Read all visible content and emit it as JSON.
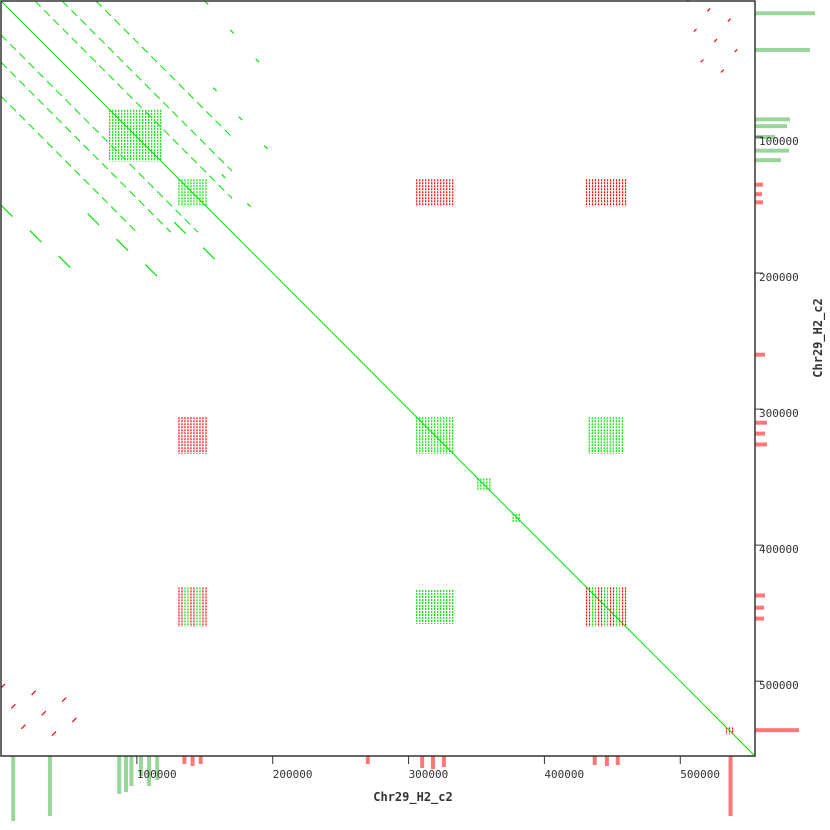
{
  "chart_data": {
    "type": "scatter",
    "title": "",
    "xlabel": "Chr29_H2_c2",
    "ylabel": "Chr29_H2_c2",
    "xlim": [
      0,
      555000
    ],
    "ylim": [
      0,
      555000
    ],
    "xticks": [
      100000,
      200000,
      300000,
      400000,
      500000
    ],
    "yticks": [
      100000,
      200000,
      300000,
      400000,
      500000
    ],
    "xtick_labels": [
      "100000",
      "200000",
      "300000",
      "400000",
      "500000"
    ],
    "ytick_labels": [
      "100000",
      "200000",
      "300000",
      "400000",
      "500000"
    ],
    "colors": {
      "forward": "#00e000",
      "reverse": "#ff0000",
      "cov_forward": "#99d699",
      "cov_reverse": "#ff7777",
      "axis": "#333333"
    },
    "diagonal": {
      "from": 0,
      "to": 555000,
      "strand": "forward"
    },
    "blocks": [
      {
        "x": [
          131000,
          151000
        ],
        "y": [
          131000,
          151000
        ],
        "strand": "forward"
      },
      {
        "x": [
          80000,
          118000
        ],
        "y": [
          80000,
          118000
        ],
        "strand": "forward"
      },
      {
        "x": [
          306000,
          333000
        ],
        "y": [
          306000,
          333000
        ],
        "strand": "forward"
      },
      {
        "x": [
          131000,
          151000
        ],
        "y": [
          306000,
          333000
        ],
        "strand": "reverse"
      },
      {
        "x": [
          306000,
          333000
        ],
        "y": [
          131000,
          151000
        ],
        "strand": "reverse"
      },
      {
        "x": [
          433000,
          458000
        ],
        "y": [
          306000,
          333000
        ],
        "strand": "forward"
      },
      {
        "x": [
          306000,
          333000
        ],
        "y": [
          433000,
          458000
        ],
        "strand": "forward"
      },
      {
        "x": [
          431000,
          460000
        ],
        "y": [
          131000,
          151000
        ],
        "strand": "reverse"
      },
      {
        "x": [
          131000,
          151000
        ],
        "y": [
          431000,
          460000
        ],
        "strand": "mixed"
      },
      {
        "x": [
          431000,
          460000
        ],
        "y": [
          431000,
          460000
        ],
        "strand": "mixed"
      },
      {
        "x": [
          534000,
          539000
        ],
        "y": [
          534000,
          539000
        ],
        "strand": "reverse"
      },
      {
        "x": [
          351000,
          360000
        ],
        "y": [
          351000,
          360000
        ],
        "strand": "forward"
      },
      {
        "x": [
          377000,
          383000
        ],
        "y": [
          377000,
          383000
        ],
        "strand": "forward"
      }
    ],
    "repeat_diagonals": [
      {
        "x": [
          0,
          170000
        ],
        "y": [
          0,
          170000
        ],
        "offsets": [
          -45000,
          -25000,
          25000,
          45000,
          -70000,
          70000
        ],
        "strand": "forward"
      },
      {
        "x": [
          0,
          60000
        ],
        "y": [
          505000,
          545000
        ],
        "strand": "reverse"
      },
      {
        "x": [
          505000,
          545000
        ],
        "y": [
          0,
          60000
        ],
        "strand": "reverse"
      },
      {
        "x": [
          0,
          170000
        ],
        "y": [
          150000,
          200000
        ],
        "strand": "forward"
      },
      {
        "x": [
          150000,
          200000
        ],
        "y": [
          0,
          170000
        ],
        "strand": "forward"
      }
    ],
    "coverage_x": [
      {
        "pos": 9000,
        "depth": 65,
        "strand": "forward"
      },
      {
        "pos": 36000,
        "depth": 60,
        "strand": "forward"
      },
      {
        "pos": 87000,
        "depth": 38,
        "strand": "forward"
      },
      {
        "pos": 92000,
        "depth": 36,
        "strand": "forward"
      },
      {
        "pos": 96000,
        "depth": 30,
        "strand": "forward"
      },
      {
        "pos": 103000,
        "depth": 20,
        "strand": "forward"
      },
      {
        "pos": 109000,
        "depth": 30,
        "strand": "forward"
      },
      {
        "pos": 115000,
        "depth": 24,
        "strand": "forward"
      },
      {
        "pos": 135000,
        "depth": 8,
        "strand": "reverse"
      },
      {
        "pos": 141000,
        "depth": 10,
        "strand": "reverse"
      },
      {
        "pos": 147000,
        "depth": 8,
        "strand": "reverse"
      },
      {
        "pos": 270000,
        "depth": 8,
        "strand": "reverse"
      },
      {
        "pos": 310000,
        "depth": 12,
        "strand": "reverse"
      },
      {
        "pos": 318000,
        "depth": 13,
        "strand": "reverse"
      },
      {
        "pos": 326000,
        "depth": 11,
        "strand": "reverse"
      },
      {
        "pos": 437000,
        "depth": 9,
        "strand": "reverse"
      },
      {
        "pos": 446000,
        "depth": 10,
        "strand": "reverse"
      },
      {
        "pos": 454000,
        "depth": 9,
        "strand": "reverse"
      },
      {
        "pos": 537000,
        "depth": 60,
        "strand": "reverse"
      }
    ],
    "coverage_y": [
      {
        "pos": 9000,
        "depth": 60,
        "strand": "forward"
      },
      {
        "pos": 36000,
        "depth": 55,
        "strand": "forward"
      },
      {
        "pos": 87000,
        "depth": 35,
        "strand": "forward"
      },
      {
        "pos": 92000,
        "depth": 32,
        "strand": "forward"
      },
      {
        "pos": 100000,
        "depth": 20,
        "strand": "forward"
      },
      {
        "pos": 110000,
        "depth": 34,
        "strand": "forward"
      },
      {
        "pos": 117000,
        "depth": 26,
        "strand": "forward"
      },
      {
        "pos": 135000,
        "depth": 8,
        "strand": "reverse"
      },
      {
        "pos": 142000,
        "depth": 7,
        "strand": "reverse"
      },
      {
        "pos": 148000,
        "depth": 8,
        "strand": "reverse"
      },
      {
        "pos": 260000,
        "depth": 10,
        "strand": "reverse"
      },
      {
        "pos": 310000,
        "depth": 12,
        "strand": "reverse"
      },
      {
        "pos": 318000,
        "depth": 10,
        "strand": "reverse"
      },
      {
        "pos": 326000,
        "depth": 12,
        "strand": "reverse"
      },
      {
        "pos": 437000,
        "depth": 10,
        "strand": "reverse"
      },
      {
        "pos": 446000,
        "depth": 9,
        "strand": "reverse"
      },
      {
        "pos": 454000,
        "depth": 9,
        "strand": "reverse"
      },
      {
        "pos": 536000,
        "depth": 44,
        "strand": "reverse"
      }
    ]
  }
}
